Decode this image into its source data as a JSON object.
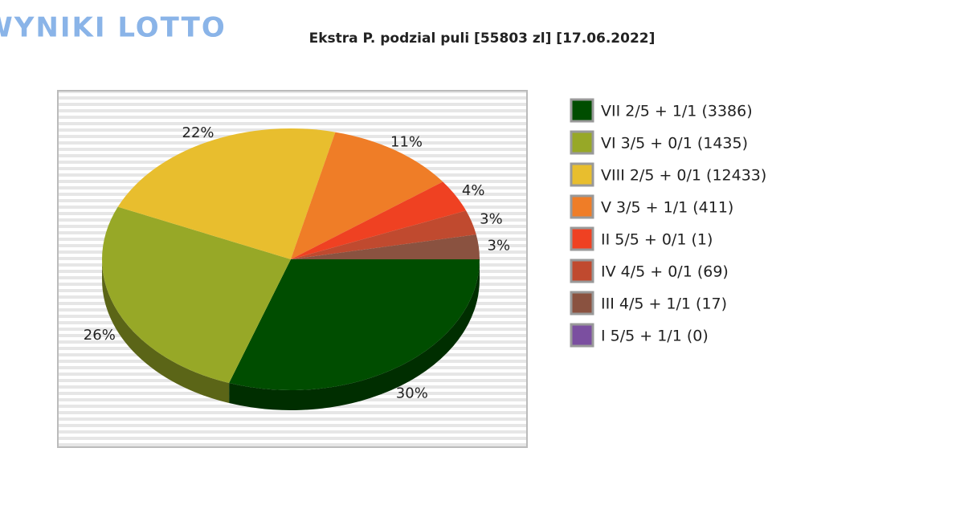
{
  "logo": "WYNIKI LOTTO",
  "chart_data": {
    "type": "pie",
    "title": "Ekstra P. podzial puli [55803 zl] [17.06.2022]",
    "categories": [
      "VII 2/5 + 1/1 (3386)",
      "VI 3/5 + 0/1 (1435)",
      "VIII 2/5 + 0/1 (12433)",
      "V 3/5 + 1/1 (411)",
      "II 5/5 + 0/1 (1)",
      "IV 4/5 + 0/1 (69)",
      "III 4/5 + 1/1 (17)",
      "I 5/5 + 1/1 (0)"
    ],
    "values": [
      30,
      26,
      22,
      11,
      4,
      3,
      3,
      0
    ],
    "value_labels": [
      "30%",
      "26%",
      "22%",
      "11%",
      "4%",
      "3%",
      "3%",
      null
    ],
    "colors": [
      "#004d00",
      "#97a827",
      "#e8be2e",
      "#ef7d27",
      "#ef4122",
      "#c04a2f",
      "#8a5240",
      "#7b4fa0"
    ],
    "legend": "right"
  }
}
